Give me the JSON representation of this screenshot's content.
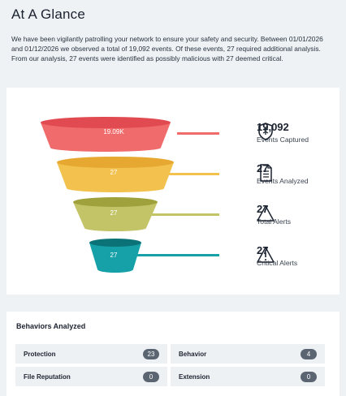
{
  "header": {
    "title": "At A Glance",
    "description": "We have been vigilantly patrolling your network to ensure your safety and security. Between 01/01/2026 and 01/12/2026 we observed a total of 19,092 events. Of these events, 27 required additional analysis. From our analysis, 27 events were identified as possibly malicious with 27 deemed critical."
  },
  "funnel": {
    "stages": [
      {
        "label": "19.09K",
        "color": "#f06c6c",
        "top_color": "#e04a50",
        "value": "19,092",
        "name": "Events Captured",
        "icon": "shield-icon"
      },
      {
        "label": "27",
        "color": "#f3c24e",
        "top_color": "#e6a830",
        "value": "27",
        "name": "Events Analyzed",
        "icon": "document-icon"
      },
      {
        "label": "27",
        "color": "#c3c467",
        "top_color": "#9fa23c",
        "value": "27",
        "name": "Total Alerts",
        "icon": "triangle-icon"
      },
      {
        "label": "27",
        "color": "#16a0a8",
        "top_color": "#0b7278",
        "value": "27",
        "name": "Critical Alerts",
        "icon": "warning-icon"
      }
    ]
  },
  "behaviors": {
    "title": "Behaviors Analyzed",
    "items": [
      {
        "label": "Protection",
        "count": "23"
      },
      {
        "label": "Behavior",
        "count": "4"
      },
      {
        "label": "File Reputation",
        "count": "0"
      },
      {
        "label": "Extension",
        "count": "0"
      }
    ]
  }
}
